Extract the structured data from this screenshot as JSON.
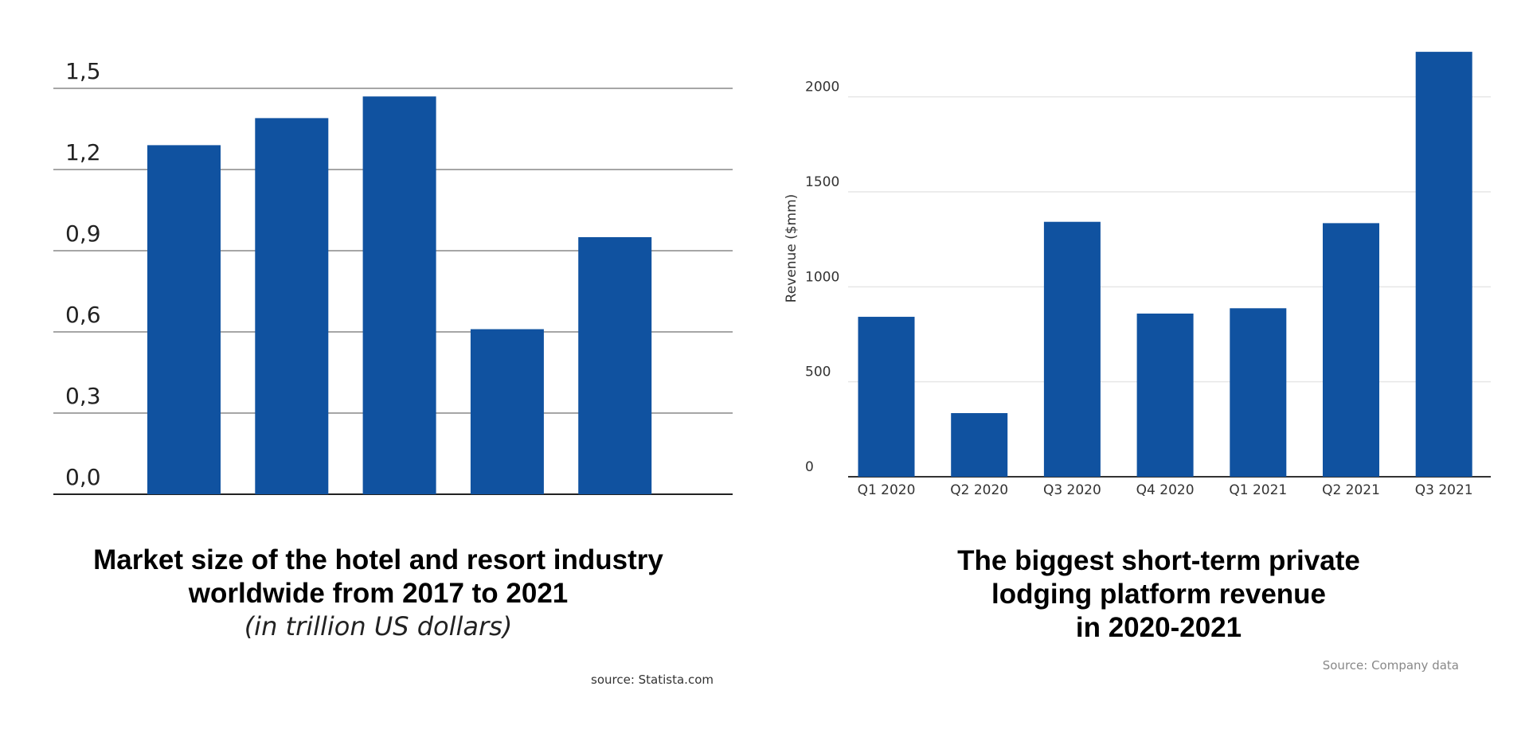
{
  "chart_data": [
    {
      "type": "bar",
      "title": "Market size of the hotel and resort industry\nworldwide from 2017 to 2021",
      "subtitle": "(in trillion US dollars)",
      "source": "source: Statista.com",
      "categories": [
        null,
        null,
        null,
        null,
        null
      ],
      "values": [
        1.29,
        1.39,
        1.47,
        0.61,
        0.95
      ],
      "color": "#1052a0",
      "ylim": [
        0,
        1.5
      ],
      "yticks": [
        {
          "value": 0,
          "label": "0,0"
        },
        {
          "value": 0.3,
          "label": "0,3"
        },
        {
          "value": 0.6,
          "label": "0,6"
        },
        {
          "value": 0.9,
          "label": "0,9"
        },
        {
          "value": 1.2,
          "label": "1,2"
        },
        {
          "value": 1.5,
          "label": "1,5"
        }
      ],
      "grid": true
    },
    {
      "type": "bar",
      "title": "The biggest short-term private\nlodging platform revenue\nin 2020-2021",
      "source": "Source: Company data",
      "y_label": "Revenue ($mm)",
      "categories": [
        "Q1 2020",
        "Q2 2020",
        "Q3 2020",
        "Q4 2020",
        "Q1 2021",
        "Q2 2021",
        "Q3 2021"
      ],
      "values": [
        842,
        335,
        1342,
        859,
        887,
        1335,
        2237
      ],
      "color": "#1052a0",
      "ylim": [
        0,
        2250
      ],
      "yticks": [
        0,
        500,
        1000,
        1500,
        2000
      ],
      "grid": true
    }
  ]
}
